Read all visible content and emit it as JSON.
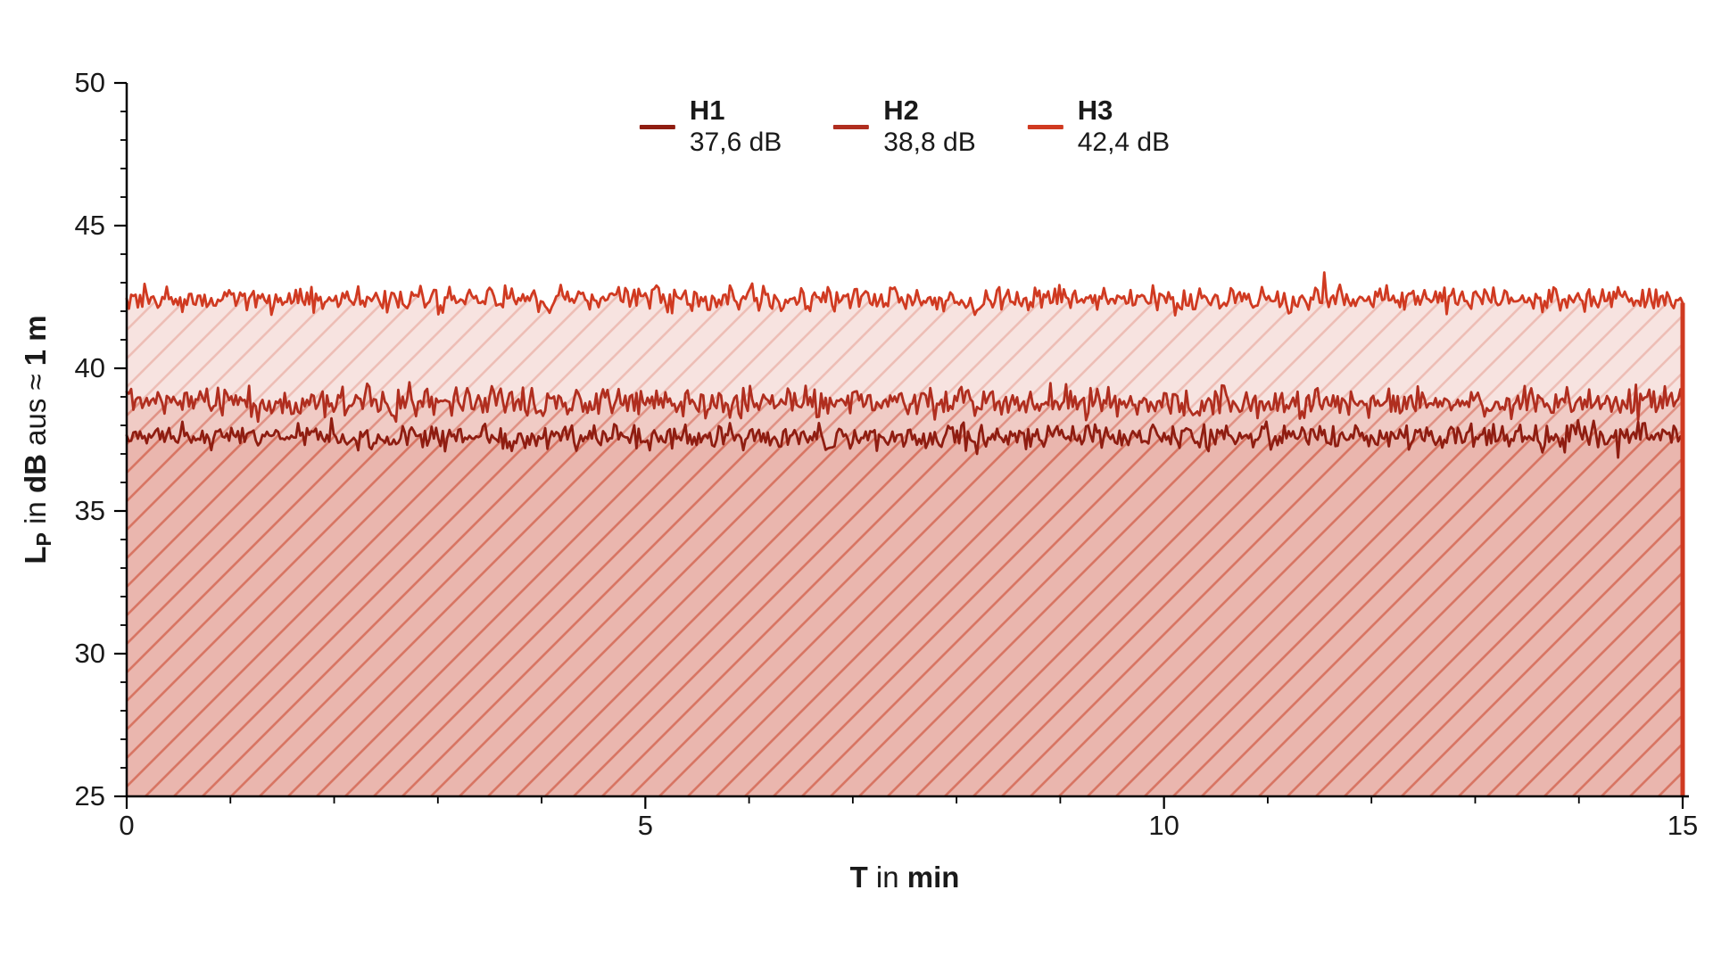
{
  "chart_data": {
    "type": "line",
    "title": "",
    "xlabel_parts": [
      {
        "text": "T",
        "bold": true
      },
      {
        "text": " in ",
        "bold": false
      },
      {
        "text": "min",
        "bold": true
      }
    ],
    "ylabel_parts": [
      {
        "text": "L",
        "bold": true
      },
      {
        "text": "P",
        "bold": true,
        "subscript": true
      },
      {
        "text": " in ",
        "bold": false
      },
      {
        "text": "dB",
        "bold": true
      },
      {
        "text": " aus ≈ ",
        "bold": false
      },
      {
        "text": "1 m",
        "bold": true
      }
    ],
    "x_range": [
      0,
      15
    ],
    "y_range": [
      25,
      50
    ],
    "x_major_ticks": [
      0,
      5,
      10,
      15
    ],
    "x_minor_step": 1,
    "y_major_ticks": [
      25,
      30,
      35,
      40,
      45,
      50
    ],
    "y_minor_step": 1,
    "grid": false,
    "legend_position": "top-center",
    "series": [
      {
        "name": "H1",
        "value_label": "37,6 dB",
        "mean_db": 37.6,
        "noise_amp_db": 0.26,
        "color": "#8F1D11"
      },
      {
        "name": "H2",
        "value_label": "38,8 dB",
        "mean_db": 38.8,
        "noise_amp_db": 0.32,
        "color": "#B02E1F"
      },
      {
        "name": "H3",
        "value_label": "42,4 dB",
        "mean_db": 42.4,
        "noise_amp_db": 0.27,
        "color": "#D03A21"
      }
    ],
    "fill": {
      "base_color": "#C83A22",
      "fill_alpha": 0.14,
      "hatch_alpha": 0.22,
      "hatch_spacing_px": 32,
      "baseline_db": 25,
      "right_edge_color": "#D03A21"
    },
    "points_per_series": 700
  },
  "colors": {
    "text": "#1a1a1a",
    "axis": "#000000",
    "background": "#ffffff"
  }
}
